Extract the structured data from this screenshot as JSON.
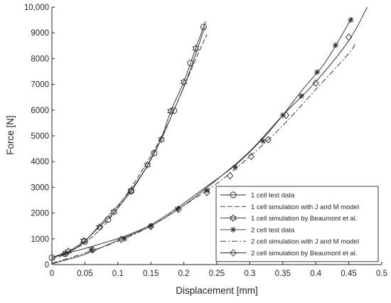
{
  "chart_data": {
    "type": "line",
    "title": "",
    "xlabel": "Displacement [mm]",
    "ylabel": "Force [N]",
    "xlim": [
      0,
      0.5
    ],
    "ylim": [
      0,
      10000
    ],
    "grid": false,
    "legend_position": "bottom-right",
    "x_ticks": [
      0,
      0.05,
      0.1,
      0.15,
      0.2,
      0.25,
      0.3,
      0.35,
      0.4,
      0.45,
      0.5
    ],
    "x_tick_labels": [
      "0",
      "0.05",
      "0.1",
      "0.15",
      "0.2",
      "0.25",
      "0.3",
      "0.35",
      "0.4",
      "0.45",
      "0.5"
    ],
    "y_ticks": [
      0,
      1000,
      2000,
      3000,
      4000,
      5000,
      6000,
      7000,
      8000,
      9000,
      10000
    ],
    "y_tick_labels": [
      "0",
      "1000",
      "2000",
      "3000",
      "4000",
      "5000",
      "6000",
      "7000",
      "8000",
      "9000",
      "10,000"
    ],
    "colors": {
      "line": "#262626",
      "axis": "#262626"
    },
    "series": [
      {
        "name": "1 cell test data",
        "line_style": "solid",
        "marker": "circle",
        "x": [
          0,
          0.02,
          0.035,
          0.05,
          0.075,
          0.1,
          0.12,
          0.14,
          0.155,
          0.17,
          0.185,
          0.2,
          0.215,
          0.232
        ],
        "y": [
          270,
          420,
          620,
          900,
          1600,
          2300,
          2900,
          3650,
          4350,
          5100,
          6000,
          6900,
          7950,
          9250
        ],
        "marker_x": [
          0,
          0.02,
          0.05,
          0.085,
          0.12,
          0.155,
          0.185,
          0.21,
          0.23
        ],
        "marker_y": [
          270,
          420,
          900,
          1750,
          2850,
          4330,
          5980,
          7830,
          9230
        ]
      },
      {
        "name": "1 cell simulation with J and M model",
        "line_style": "dashed",
        "marker": "none",
        "x": [
          0,
          0.02,
          0.05,
          0.08,
          0.11,
          0.14,
          0.17,
          0.2,
          0.22,
          0.235
        ],
        "y": [
          200,
          400,
          850,
          1550,
          2600,
          3800,
          5150,
          6900,
          8100,
          8950
        ]
      },
      {
        "name": "1 cell simulation by Beaumont et al.",
        "line_style": "solid",
        "marker": "hexagram",
        "x": [
          0,
          0.025,
          0.05,
          0.07,
          0.095,
          0.12,
          0.145,
          0.165,
          0.18,
          0.2,
          0.218,
          0.233
        ],
        "y": [
          280,
          520,
          930,
          1420,
          2050,
          2850,
          3850,
          4850,
          5950,
          7100,
          8400,
          9450
        ],
        "marker_x": [
          0.025,
          0.048,
          0.072,
          0.094,
          0.12,
          0.145,
          0.166,
          0.18,
          0.2,
          0.218
        ],
        "marker_y": [
          520,
          920,
          1450,
          2050,
          2870,
          3870,
          4860,
          5960,
          7090,
          8400
        ]
      },
      {
        "name": "2 cell test data",
        "line_style": "solid",
        "marker": "asterisk",
        "x": [
          0,
          0.02,
          0.06,
          0.11,
          0.15,
          0.19,
          0.23,
          0.28,
          0.32,
          0.35,
          0.38,
          0.41,
          0.43,
          0.455
        ],
        "y": [
          270,
          420,
          700,
          1100,
          1550,
          2200,
          2950,
          3900,
          4900,
          5800,
          6800,
          7700,
          8500,
          9600
        ],
        "marker_x": [
          0.02,
          0.06,
          0.11,
          0.15,
          0.19,
          0.235,
          0.278,
          0.32,
          0.35,
          0.378,
          0.402,
          0.43,
          0.453
        ],
        "marker_y": [
          420,
          580,
          1000,
          1500,
          2150,
          2880,
          3780,
          4800,
          5800,
          6550,
          7480,
          8520,
          9500
        ]
      },
      {
        "name": "2 cell simulation with J and M model",
        "line_style": "dashdot",
        "marker": "none",
        "x": [
          0,
          0.05,
          0.1,
          0.15,
          0.2,
          0.25,
          0.3,
          0.35,
          0.4,
          0.45,
          0.46
        ],
        "y": [
          50,
          450,
          900,
          1500,
          2300,
          3150,
          4200,
          5400,
          6800,
          8200,
          8600
        ]
      },
      {
        "name": "2 cell simulation by Beaumont et al.",
        "line_style": "solid",
        "marker": "diamond",
        "x": [
          0,
          0.05,
          0.1,
          0.15,
          0.2,
          0.25,
          0.3,
          0.35,
          0.4,
          0.45,
          0.478
        ],
        "y": [
          30,
          400,
          950,
          1500,
          2300,
          3300,
          4400,
          5800,
          7100,
          8700,
          10000
        ],
        "marker_x": [
          0.062,
          0.105,
          0.15,
          0.192,
          0.235,
          0.27,
          0.302,
          0.328,
          0.355,
          0.4,
          0.45
        ],
        "marker_y": [
          570,
          980,
          1480,
          2150,
          2800,
          3450,
          4200,
          4850,
          5800,
          7050,
          8830
        ]
      }
    ]
  }
}
